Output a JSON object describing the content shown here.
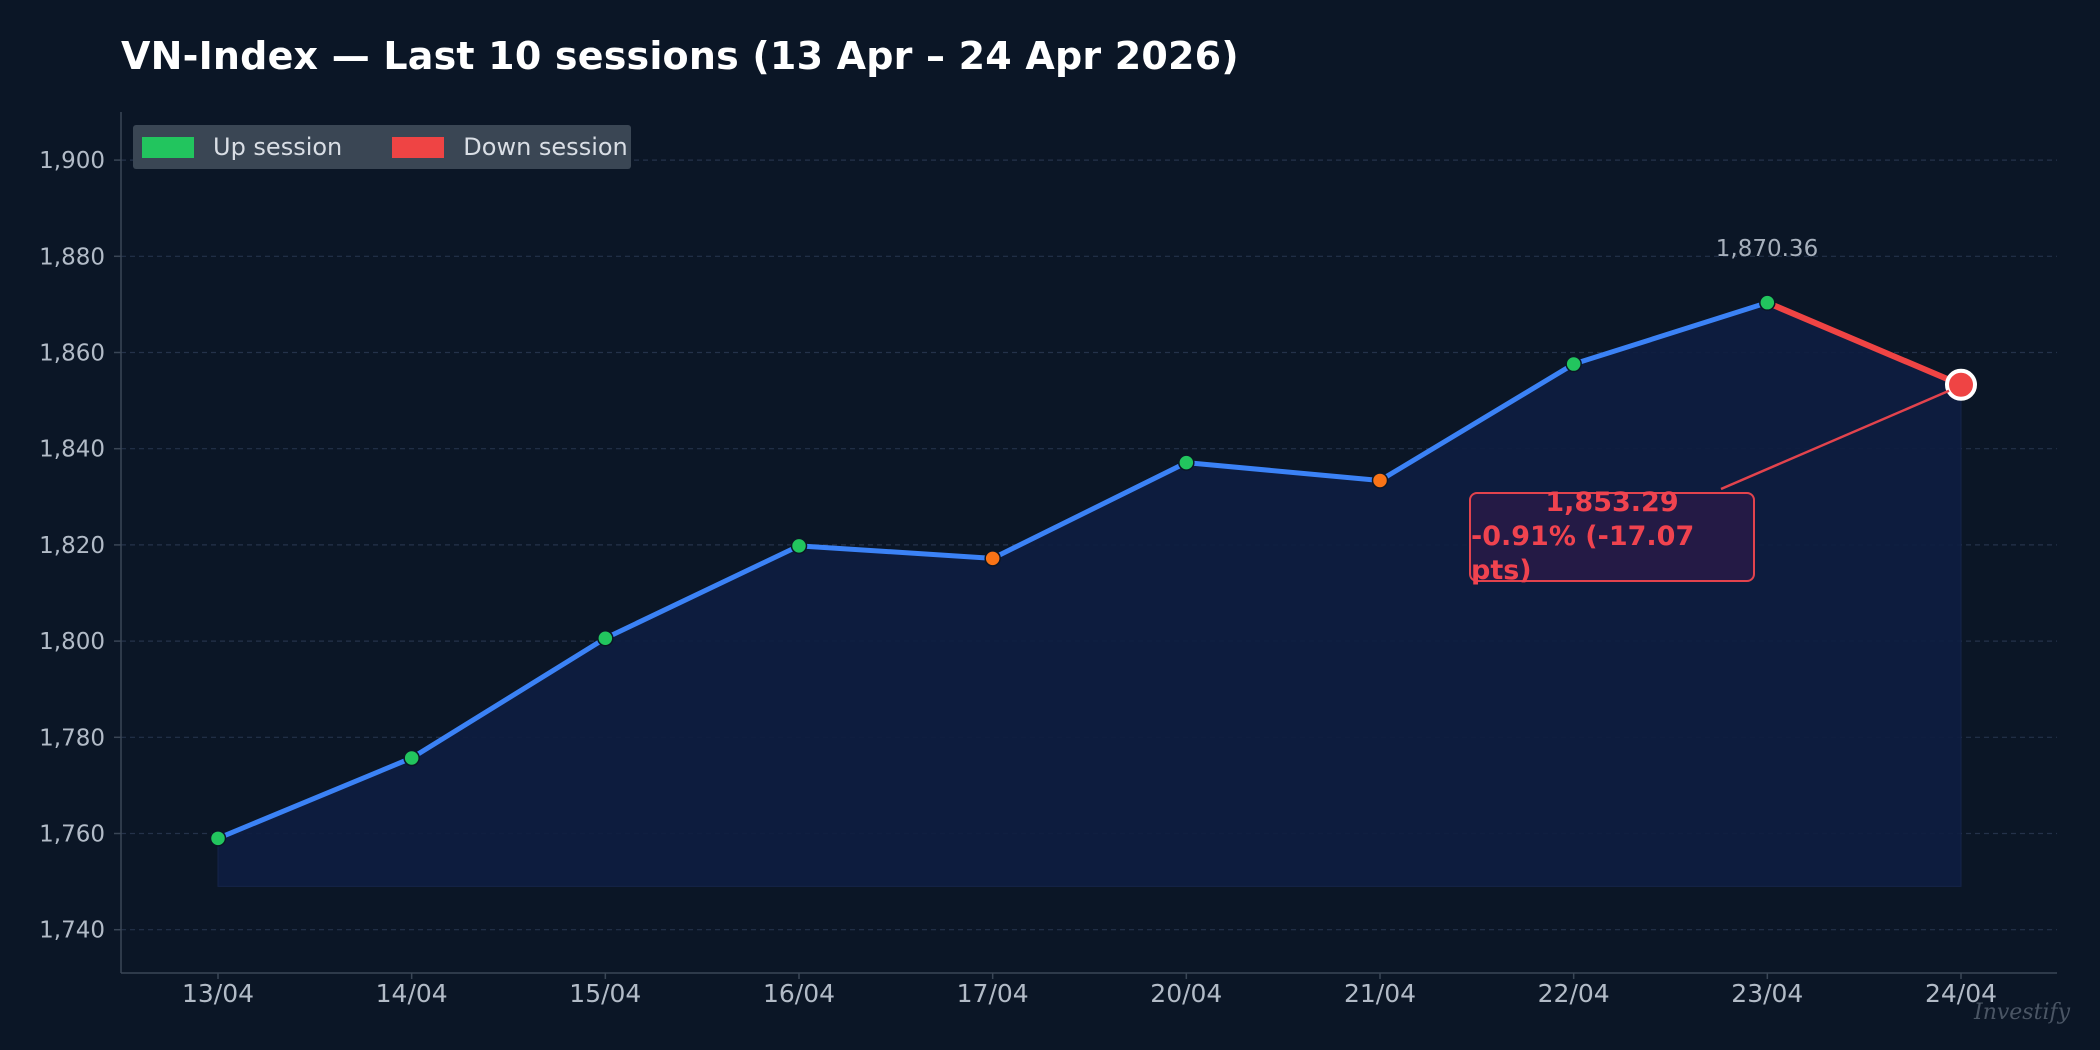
{
  "chart_data": {
    "type": "line",
    "title": "VN-Index — Last 10 sessions (13 Apr – 24 Apr 2026)",
    "categories": [
      "13/04",
      "14/04",
      "15/04",
      "16/04",
      "17/04",
      "20/04",
      "21/04",
      "22/04",
      "23/04",
      "24/04"
    ],
    "values": [
      1759.0,
      1775.7,
      1800.6,
      1819.8,
      1817.2,
      1837.1,
      1833.4,
      1857.6,
      1870.36,
      1853.29
    ],
    "session_direction": [
      "up",
      "up",
      "up",
      "up",
      "down",
      "up",
      "down",
      "up",
      "up",
      "down"
    ],
    "ylim": [
      1731,
      1910
    ],
    "yticks": [
      1740,
      1760,
      1780,
      1800,
      1820,
      1840,
      1860,
      1880,
      1900
    ],
    "ytick_labels": [
      "1,740",
      "1,760",
      "1,780",
      "1,800",
      "1,820",
      "1,840",
      "1,860",
      "1,880",
      "1,900"
    ],
    "fill_baseline": 1749,
    "grid": true,
    "legend_position": "top-left",
    "legend": [
      {
        "label": "Up session",
        "color": "#22c55e"
      },
      {
        "label": "Down session",
        "color": "#ef4444"
      }
    ],
    "annotations": {
      "peak_label": "1,870.36",
      "last_value": "1,853.29",
      "last_change": "-0.91% (-17.07 pts)"
    },
    "colors": {
      "line": "#3b82f6",
      "up_marker": "#22c55e",
      "down_marker": "#f97316",
      "last_segment": "#ef4444",
      "fill": "#0e1d40"
    }
  },
  "watermark": "Investify"
}
